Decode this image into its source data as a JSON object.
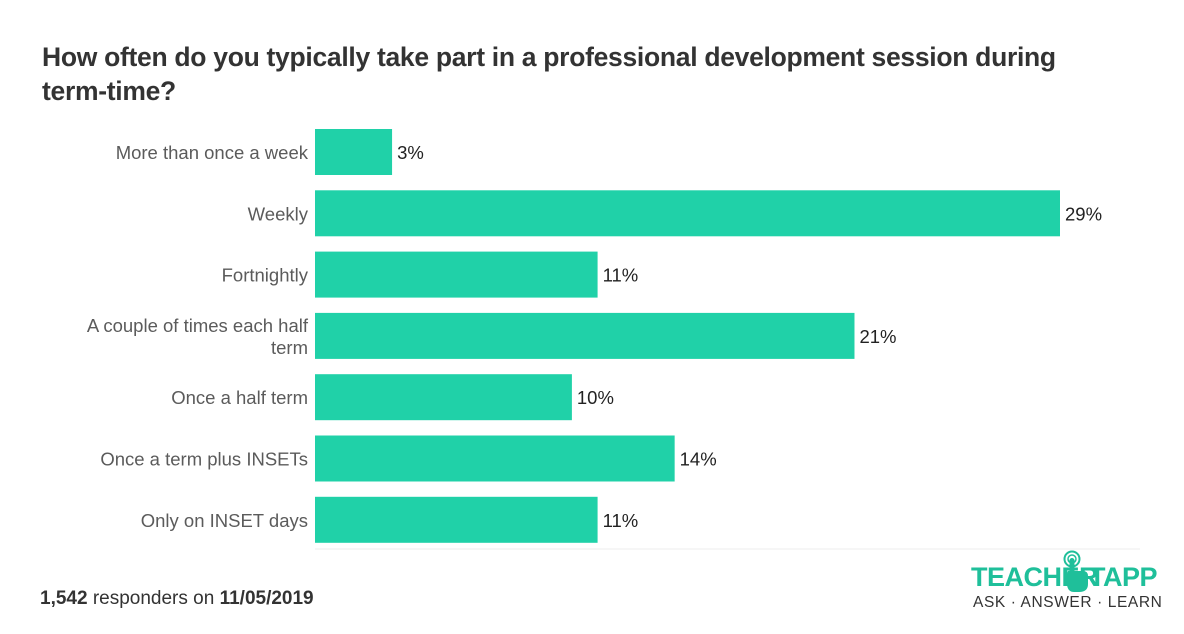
{
  "title": "How often do you typically take part in a professional development session during term-time?",
  "footer": {
    "count": "1,542",
    "text": " responders on ",
    "date": "11/05/2019"
  },
  "logo": {
    "word_left": "TEACHER",
    "word_right": "TAPP",
    "tagline": "ASK · ANSWER · LEARN",
    "icon": "tapping-hand-icon",
    "color": "#1fbf9a"
  },
  "chart_data": {
    "type": "bar",
    "orientation": "horizontal",
    "categories": [
      [
        "More than once a week"
      ],
      [
        "Weekly"
      ],
      [
        "Fortnightly"
      ],
      [
        "A couple of times each half",
        "term"
      ],
      [
        "Once a half term"
      ],
      [
        "Once a term plus INSETs"
      ],
      [
        "Only on INSET days"
      ]
    ],
    "values": [
      3,
      29,
      11,
      21,
      10,
      14,
      11
    ],
    "value_labels": [
      "3%",
      "29%",
      "11%",
      "21%",
      "10%",
      "14%",
      "11%"
    ],
    "unit": "%",
    "xlim": [
      0,
      30
    ],
    "bar_color": "#20d1a8",
    "grid": false
  }
}
